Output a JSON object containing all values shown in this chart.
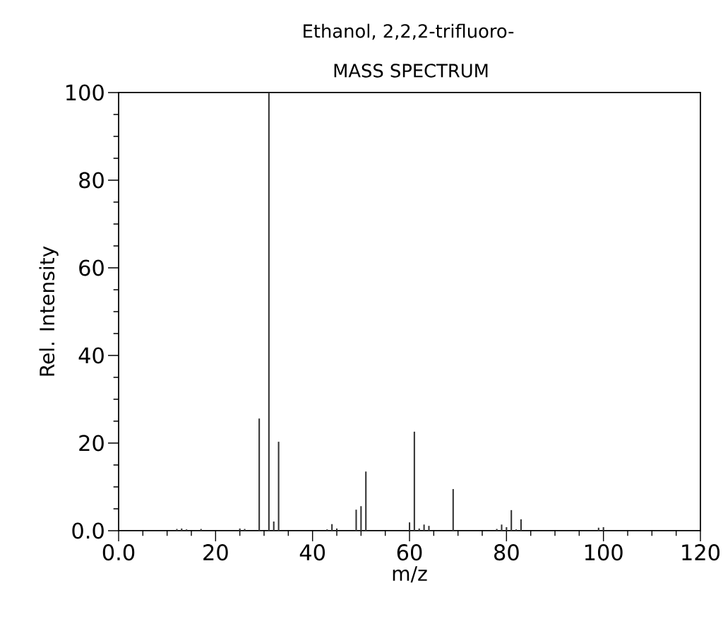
{
  "chart_data": {
    "type": "bar",
    "title": "Ethanol, 2,2,2-trifluoro-",
    "subtitle": "MASS SPECTRUM",
    "xlabel": "m/z",
    "ylabel": "Rel. Intensity",
    "color": "#333333",
    "x": [
      12,
      13,
      14,
      17,
      25,
      26,
      29,
      31,
      32,
      33,
      43,
      44,
      45,
      49,
      50,
      51,
      60,
      61,
      62,
      63,
      64,
      69,
      78,
      79,
      80,
      81,
      82,
      83,
      99,
      100
    ],
    "values": [
      0.4,
      0.5,
      0.3,
      0.4,
      0.5,
      0.4,
      25.6,
      100,
      2.1,
      20.3,
      0.3,
      1.5,
      0.5,
      4.8,
      5.6,
      13.5,
      1.9,
      22.6,
      0.5,
      1.4,
      1.1,
      9.5,
      0.4,
      1.4,
      0.8,
      4.7,
      0.3,
      2.6,
      0.7,
      0.8
    ],
    "xlim": [
      0,
      120
    ],
    "ylim": [
      0,
      100
    ],
    "xticks": [
      {
        "value": 0,
        "label": "0.0"
      },
      20,
      40,
      60,
      80,
      100,
      120
    ],
    "yticks": [
      {
        "value": 0,
        "label": "0.0"
      },
      20,
      40,
      60,
      80,
      100
    ],
    "grid": false
  }
}
